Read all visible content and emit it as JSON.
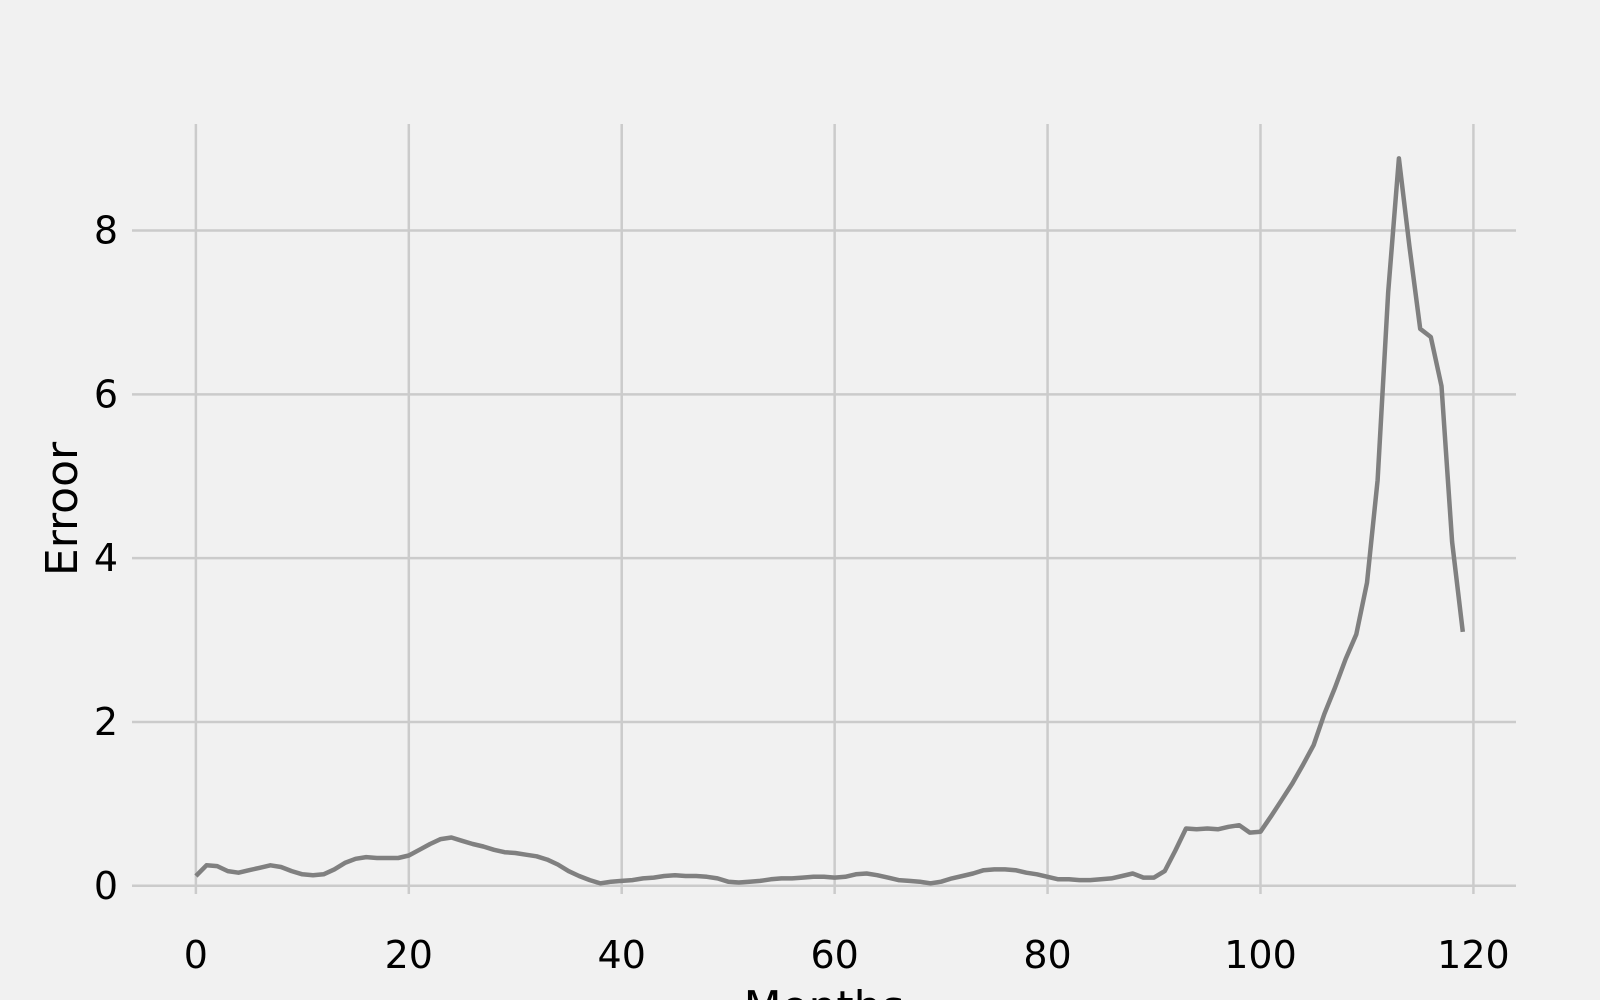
{
  "chart_data": {
    "type": "line",
    "title": "",
    "xlabel": "Months",
    "ylabel": "Erroor",
    "xlim": [
      -6,
      124
    ],
    "ylim": [
      -0.1,
      9.3
    ],
    "x_ticks": [
      0,
      20,
      40,
      60,
      80,
      100,
      120
    ],
    "y_ticks": [
      0,
      2,
      4,
      6,
      8
    ],
    "grid": true,
    "legend": "none",
    "colors": {
      "background": "#f1f1f1",
      "grid": "#cbcbcb",
      "line": "#808080"
    },
    "series": [
      {
        "x": [
          0,
          1,
          2,
          3,
          4,
          5,
          6,
          7,
          8,
          9,
          10,
          11,
          12,
          13,
          14,
          15,
          16,
          17,
          18,
          19,
          20,
          21,
          22,
          23,
          24,
          25,
          26,
          27,
          28,
          29,
          30,
          31,
          32,
          33,
          34,
          35,
          36,
          37,
          38,
          39,
          40,
          41,
          42,
          43,
          44,
          45,
          46,
          47,
          48,
          49,
          50,
          51,
          52,
          53,
          54,
          55,
          56,
          57,
          58,
          59,
          60,
          61,
          62,
          63,
          64,
          65,
          66,
          67,
          68,
          69,
          70,
          71,
          72,
          73,
          74,
          75,
          76,
          77,
          78,
          79,
          80,
          81,
          82,
          83,
          84,
          85,
          86,
          87,
          88,
          89,
          90,
          91,
          92,
          93,
          94,
          95,
          96,
          97,
          98,
          99,
          100,
          101,
          102,
          103,
          104,
          105,
          106,
          107,
          108,
          109,
          110,
          111,
          112,
          113,
          114,
          115,
          116,
          117,
          118,
          119
        ],
        "y": [
          0.12,
          0.25,
          0.24,
          0.18,
          0.16,
          0.19,
          0.22,
          0.25,
          0.23,
          0.18,
          0.14,
          0.13,
          0.14,
          0.2,
          0.28,
          0.33,
          0.35,
          0.34,
          0.34,
          0.34,
          0.37,
          0.44,
          0.51,
          0.57,
          0.59,
          0.55,
          0.51,
          0.48,
          0.44,
          0.41,
          0.4,
          0.38,
          0.36,
          0.32,
          0.26,
          0.18,
          0.12,
          0.07,
          0.03,
          0.05,
          0.06,
          0.07,
          0.09,
          0.1,
          0.12,
          0.13,
          0.12,
          0.12,
          0.11,
          0.09,
          0.05,
          0.04,
          0.05,
          0.06,
          0.08,
          0.09,
          0.09,
          0.1,
          0.11,
          0.11,
          0.1,
          0.11,
          0.14,
          0.15,
          0.13,
          0.1,
          0.07,
          0.06,
          0.05,
          0.03,
          0.05,
          0.09,
          0.12,
          0.15,
          0.19,
          0.2,
          0.2,
          0.19,
          0.16,
          0.14,
          0.11,
          0.08,
          0.08,
          0.07,
          0.07,
          0.08,
          0.09,
          0.12,
          0.15,
          0.1,
          0.1,
          0.18,
          0.43,
          0.7,
          0.69,
          0.7,
          0.69,
          0.72,
          0.74,
          0.65,
          0.66,
          0.85,
          1.05,
          1.25,
          1.48,
          1.72,
          2.1,
          2.42,
          2.77,
          3.07,
          3.7,
          4.95,
          7.25,
          8.88,
          7.8,
          6.8,
          6.7,
          6.1,
          4.2,
          3.1
        ]
      }
    ]
  }
}
